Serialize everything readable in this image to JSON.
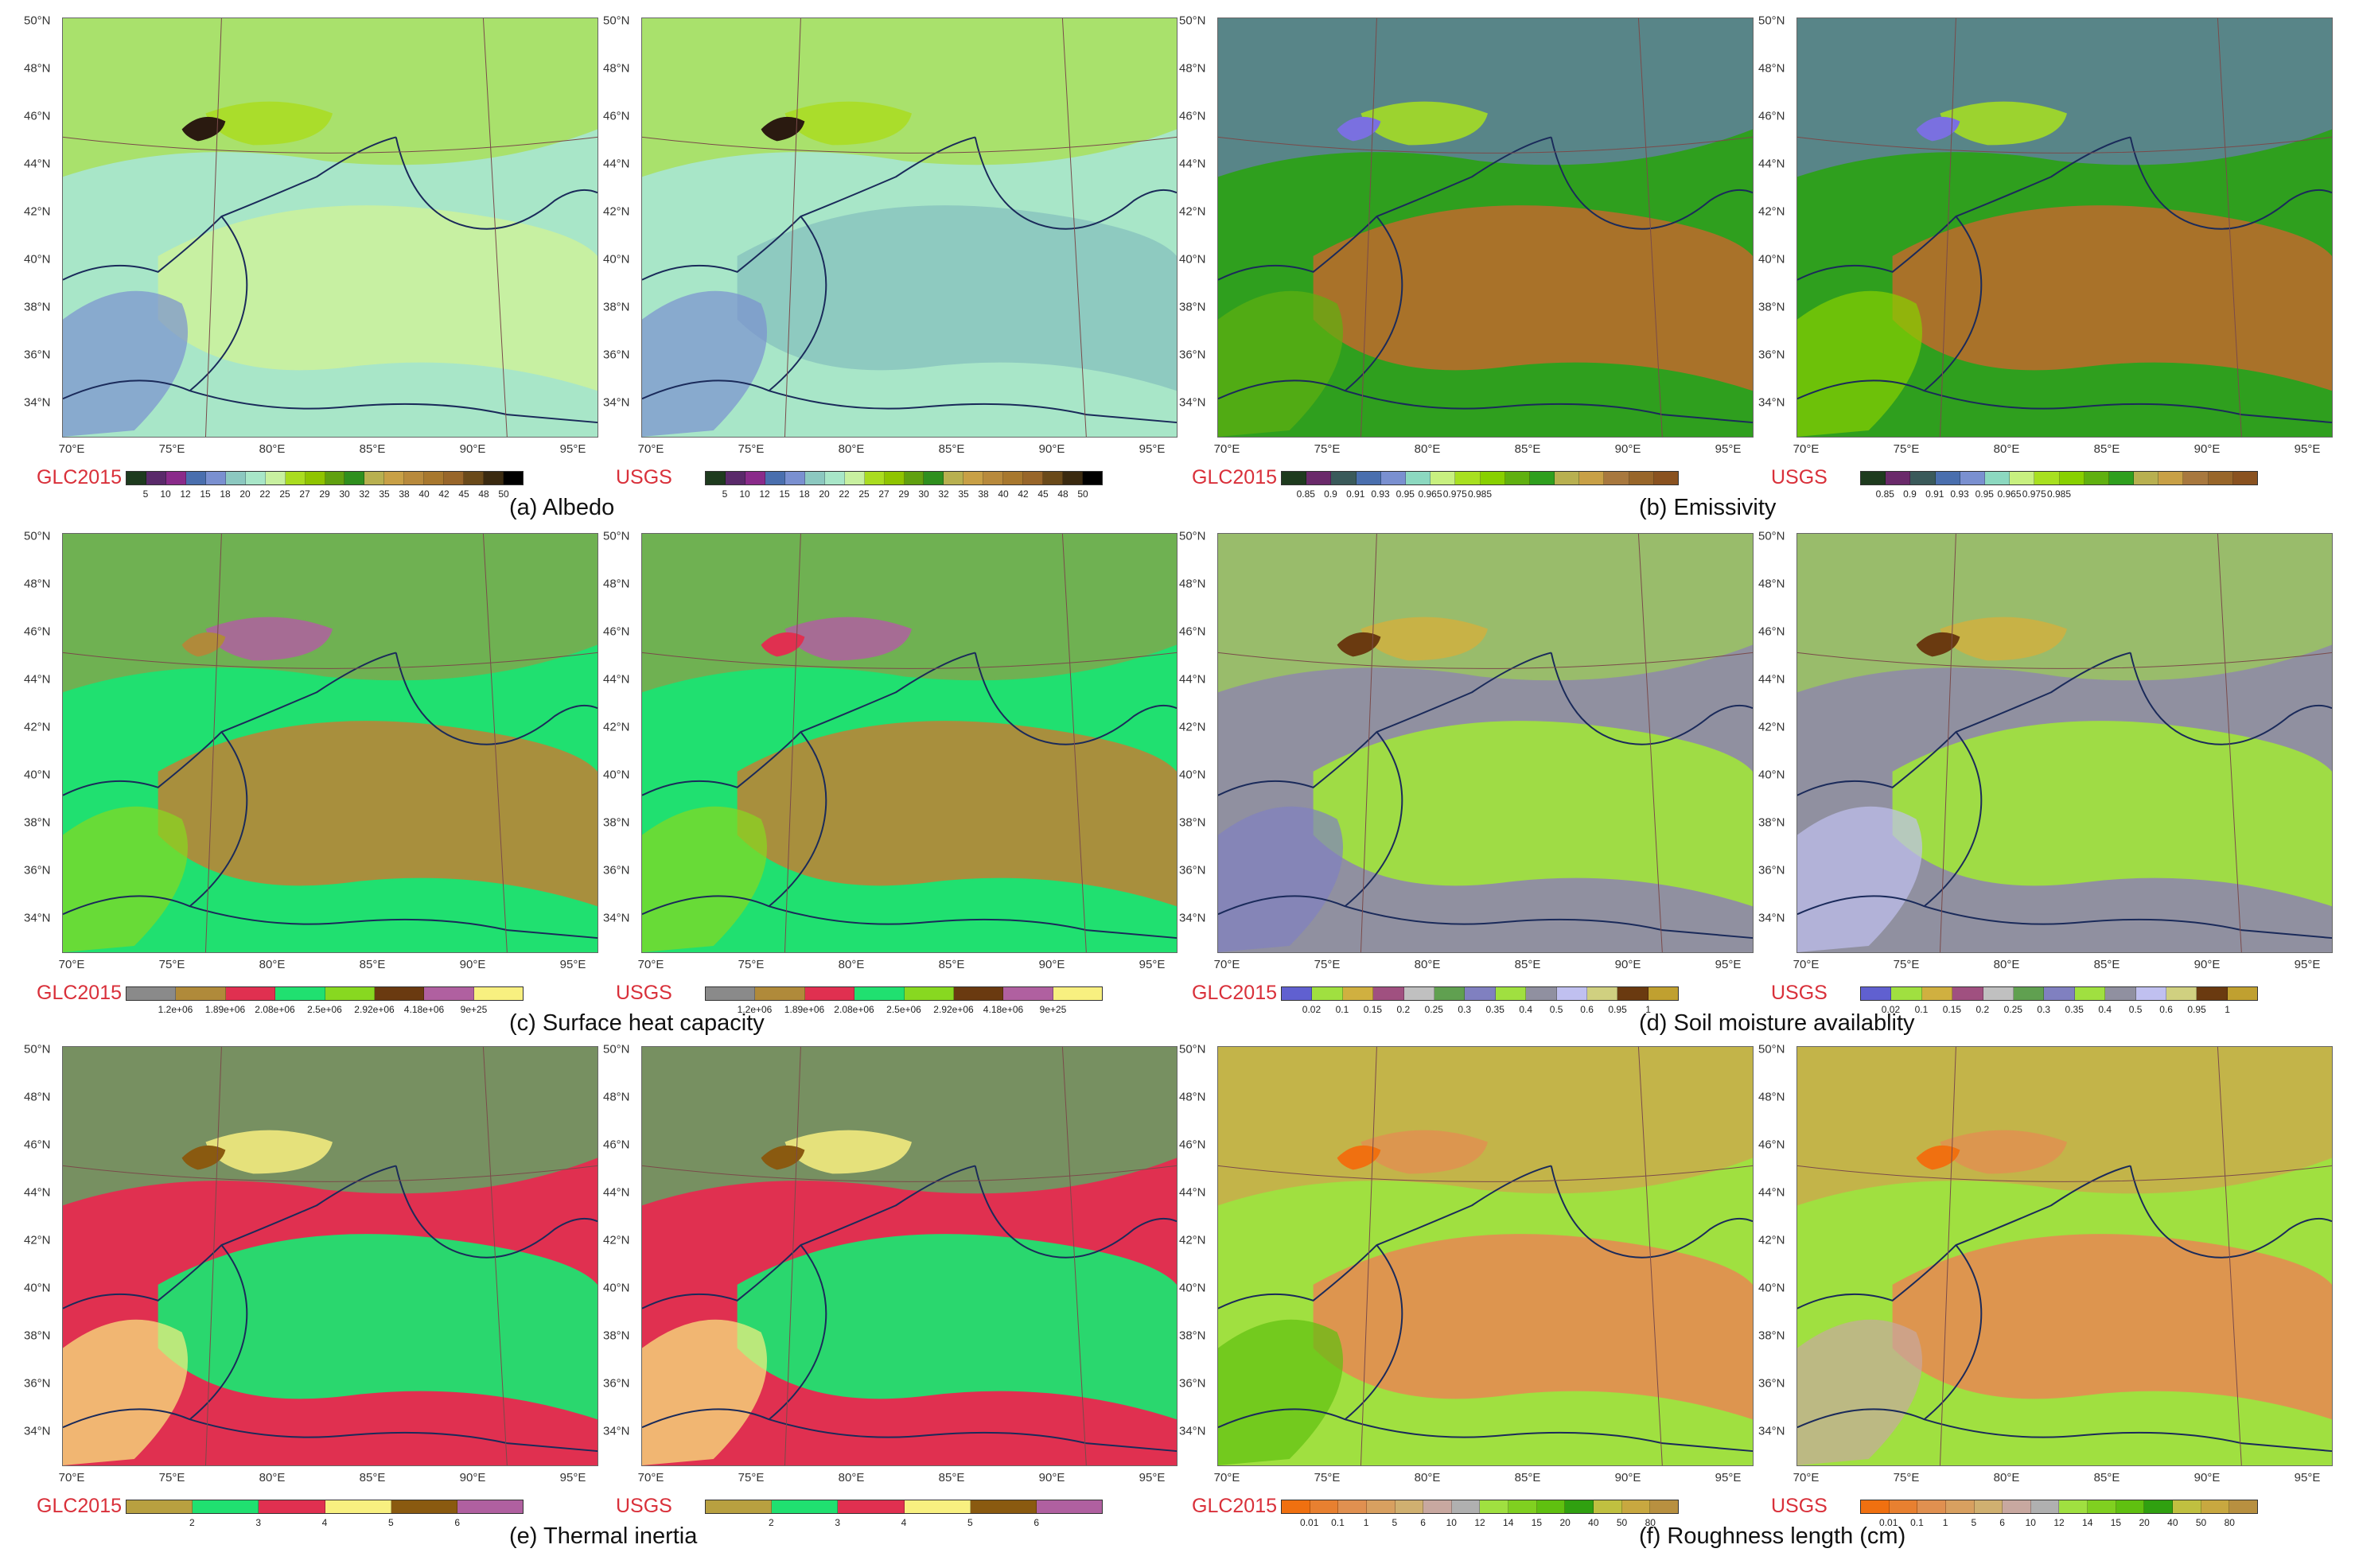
{
  "latitude_labels": [
    "50°N",
    "48°N",
    "46°N",
    "44°N",
    "42°N",
    "40°N",
    "38°N",
    "36°N",
    "34°N"
  ],
  "longitude_labels": [
    "70°E",
    "75°E",
    "80°E",
    "85°E",
    "90°E",
    "95°E"
  ],
  "rows": [
    {
      "caption": "(a) Albedo",
      "left_panels": [
        {
          "source": "GLC2015",
          "colors": [
            "#1e3b1e",
            "#5a2a6a",
            "#8a2b8a",
            "#4a6fae",
            "#7a90d0",
            "#8cc8c0",
            "#a8e6c8",
            "#c8f0a0",
            "#aadc20",
            "#8fc400",
            "#60a010",
            "#2f8f1e",
            "#b8b050",
            "#c8a046",
            "#b88a3c",
            "#a8782e",
            "#98662a",
            "#6a4a1a",
            "#3a2a10",
            "#000000"
          ],
          "ticks": [
            "5",
            "10",
            "12",
            "15",
            "18",
            "20",
            "22",
            "25",
            "27",
            "29",
            "30",
            "32",
            "35",
            "38",
            "40",
            "42",
            "45",
            "48",
            "50"
          ]
        },
        {
          "source": "USGS",
          "colors": [
            "#1e3b1e",
            "#5a2a6a",
            "#8a2b8a",
            "#4a6fae",
            "#7a90d0",
            "#8cc8c0",
            "#a8e6c8",
            "#c8f0a0",
            "#aadc20",
            "#8fc400",
            "#60a010",
            "#2f8f1e",
            "#b8b050",
            "#c8a046",
            "#b88a3c",
            "#a8782e",
            "#98662a",
            "#6a4a1a",
            "#3a2a10",
            "#000000"
          ],
          "ticks": [
            "5",
            "10",
            "12",
            "15",
            "18",
            "20",
            "22",
            "25",
            "27",
            "29",
            "30",
            "32",
            "35",
            "38",
            "40",
            "42",
            "45",
            "48",
            "50"
          ]
        }
      ],
      "right_caption": "(b) Emissivity",
      "right_panels": [
        {
          "source": "GLC2015",
          "colors": [
            "#1e3b1e",
            "#6a2a6a",
            "#3a5a5a",
            "#4a6fae",
            "#7a90d0",
            "#8cd8c0",
            "#c8f080",
            "#a8e020",
            "#88d000",
            "#60b010",
            "#2f9f1e",
            "#b8b050",
            "#c8a046",
            "#a8783e",
            "#98662a",
            "#8a5220"
          ],
          "ticks": [
            "0.85",
            "0.9",
            "0.91",
            "0.93",
            "0.95",
            "0.965",
            "0.975",
            "0.985"
          ]
        },
        {
          "source": "USGS",
          "colors": [
            "#1e3b1e",
            "#6a2a6a",
            "#3a5a5a",
            "#4a6fae",
            "#7a90d0",
            "#8cd8c0",
            "#c8f080",
            "#a8e020",
            "#88d000",
            "#60b010",
            "#2f9f1e",
            "#b8b050",
            "#c8a046",
            "#a8783e",
            "#98662a",
            "#8a5220"
          ],
          "ticks": [
            "0.85",
            "0.9",
            "0.91",
            "0.93",
            "0.95",
            "0.965",
            "0.975",
            "0.985"
          ]
        }
      ]
    },
    {
      "caption": "(c) Surface heat capacity",
      "left_panels": [
        {
          "source": "GLC2015",
          "colors": [
            "#8a8a8a",
            "#b08a3a",
            "#e03050",
            "#20e070",
            "#88d820",
            "#6a3a10",
            "#b060a0",
            "#f8f080"
          ],
          "ticks": [
            "1.2e+06",
            "1.89e+06",
            "2.08e+06",
            "2.5e+06",
            "2.92e+06",
            "4.18e+06",
            "9e+25"
          ]
        },
        {
          "source": "USGS",
          "colors": [
            "#8a8a8a",
            "#b08a3a",
            "#e03050",
            "#20e070",
            "#88d820",
            "#6a3a10",
            "#b060a0",
            "#f8f080"
          ],
          "ticks": [
            "1.2e+06",
            "1.89e+06",
            "2.08e+06",
            "2.5e+06",
            "2.92e+06",
            "4.18e+06",
            "9e+25"
          ]
        }
      ],
      "right_caption": "(d) Soil moisture availablity",
      "right_panels": [
        {
          "source": "GLC2015",
          "colors": [
            "#6060d0",
            "#a0e040",
            "#d0b040",
            "#a05080",
            "#c0c0c0",
            "#60a050",
            "#8080c0",
            "#a0e040",
            "#9090a0",
            "#c0c0f0",
            "#d0d080",
            "#6a3a10",
            "#c0a030"
          ],
          "ticks": [
            "0.02",
            "0.1",
            "0.15",
            "0.2",
            "0.25",
            "0.3",
            "0.35",
            "0.4",
            "0.5",
            "0.6",
            "0.95",
            "1"
          ]
        },
        {
          "source": "USGS",
          "colors": [
            "#6060d0",
            "#a0e040",
            "#d0b040",
            "#a05080",
            "#c0c0c0",
            "#60a050",
            "#8080c0",
            "#a0e040",
            "#9090a0",
            "#c0c0f0",
            "#d0d080",
            "#6a3a10",
            "#c0a030"
          ],
          "ticks": [
            "0.02",
            "0.1",
            "0.15",
            "0.2",
            "0.25",
            "0.3",
            "0.35",
            "0.4",
            "0.5",
            "0.6",
            "0.95",
            "1"
          ]
        }
      ]
    },
    {
      "caption": "(e) Thermal inertia",
      "left_panels": [
        {
          "source": "GLC2015",
          "colors": [
            "#b8a040",
            "#20e070",
            "#e03050",
            "#f8f080",
            "#8a5a10",
            "#b060a0"
          ],
          "ticks": [
            "2",
            "3",
            "4",
            "5",
            "6"
          ]
        },
        {
          "source": "USGS",
          "colors": [
            "#b8a040",
            "#20e070",
            "#e03050",
            "#f8f080",
            "#8a5a10",
            "#b060a0"
          ],
          "ticks": [
            "2",
            "3",
            "4",
            "5",
            "6"
          ]
        }
      ],
      "right_caption": "(f) Roughness length (cm)",
      "right_panels": [
        {
          "source": "GLC2015",
          "colors": [
            "#f07010",
            "#e88030",
            "#e09050",
            "#d8a060",
            "#d0b070",
            "#c8a8a0",
            "#b0b0b0",
            "#a0e040",
            "#80d020",
            "#60c010",
            "#30a010",
            "#c0c040",
            "#c8a840",
            "#b89040"
          ],
          "ticks": [
            "0.01",
            "0.1",
            "1",
            "5",
            "6",
            "10",
            "12",
            "14",
            "15",
            "20",
            "40",
            "50",
            "80"
          ]
        },
        {
          "source": "USGS",
          "colors": [
            "#f07010",
            "#e88030",
            "#e09050",
            "#d8a060",
            "#d0b070",
            "#c8a8a0",
            "#b0b0b0",
            "#a0e040",
            "#80d020",
            "#60c010",
            "#30a010",
            "#c0c040",
            "#c8a840",
            "#b89040"
          ],
          "ticks": [
            "0.01",
            "0.1",
            "1",
            "5",
            "6",
            "10",
            "12",
            "14",
            "15",
            "20",
            "40",
            "50",
            "80"
          ]
        }
      ]
    }
  ],
  "map_styles": [
    {
      "base": "#a8e6c8",
      "blobs": [
        "#aadc20",
        "#c8f0a0",
        "#7a90d0",
        "#aadc20",
        "#2a1a10"
      ]
    },
    {
      "base": "#a8e6c8",
      "blobs": [
        "#aadc20",
        "#8cc8c0",
        "#7a90d0",
        "#aadc20",
        "#2a1a10"
      ]
    },
    {
      "base": "#2f9f1e",
      "blobs": [
        "#7a70e0",
        "#b0702a",
        "#60b010",
        "#a8e020",
        "#7a70e0"
      ]
    },
    {
      "base": "#2f9f1e",
      "blobs": [
        "#7a70e0",
        "#b0702a",
        "#88d000",
        "#a8e020",
        "#7a70e0"
      ]
    },
    {
      "base": "#20e070",
      "blobs": [
        "#b08a3a",
        "#b08a3a",
        "#88d820",
        "#b060a0",
        "#b08a3a"
      ]
    },
    {
      "base": "#20e070",
      "blobs": [
        "#b08a3a",
        "#b08a3a",
        "#88d820",
        "#b060a0",
        "#e03050"
      ]
    },
    {
      "base": "#9090a0",
      "blobs": [
        "#a0e040",
        "#a0e040",
        "#8080c0",
        "#d0b040",
        "#6a3a10"
      ]
    },
    {
      "base": "#9090a0",
      "blobs": [
        "#a0e040",
        "#a0e040",
        "#c0c0f0",
        "#d0b040",
        "#6a3a10"
      ]
    },
    {
      "base": "#e03050",
      "blobs": [
        "#20e070",
        "#20e070",
        "#f8f080",
        "#f8f080",
        "#8a5a10"
      ]
    },
    {
      "base": "#e03050",
      "blobs": [
        "#20e070",
        "#20e070",
        "#f8f080",
        "#f8f080",
        "#8a5a10"
      ]
    },
    {
      "base": "#a0e040",
      "blobs": [
        "#e09050",
        "#e09050",
        "#60c010",
        "#e09050",
        "#f07010"
      ]
    },
    {
      "base": "#a0e040",
      "blobs": [
        "#e09050",
        "#e09050",
        "#c8a8a0",
        "#e09050",
        "#f07010"
      ]
    }
  ]
}
